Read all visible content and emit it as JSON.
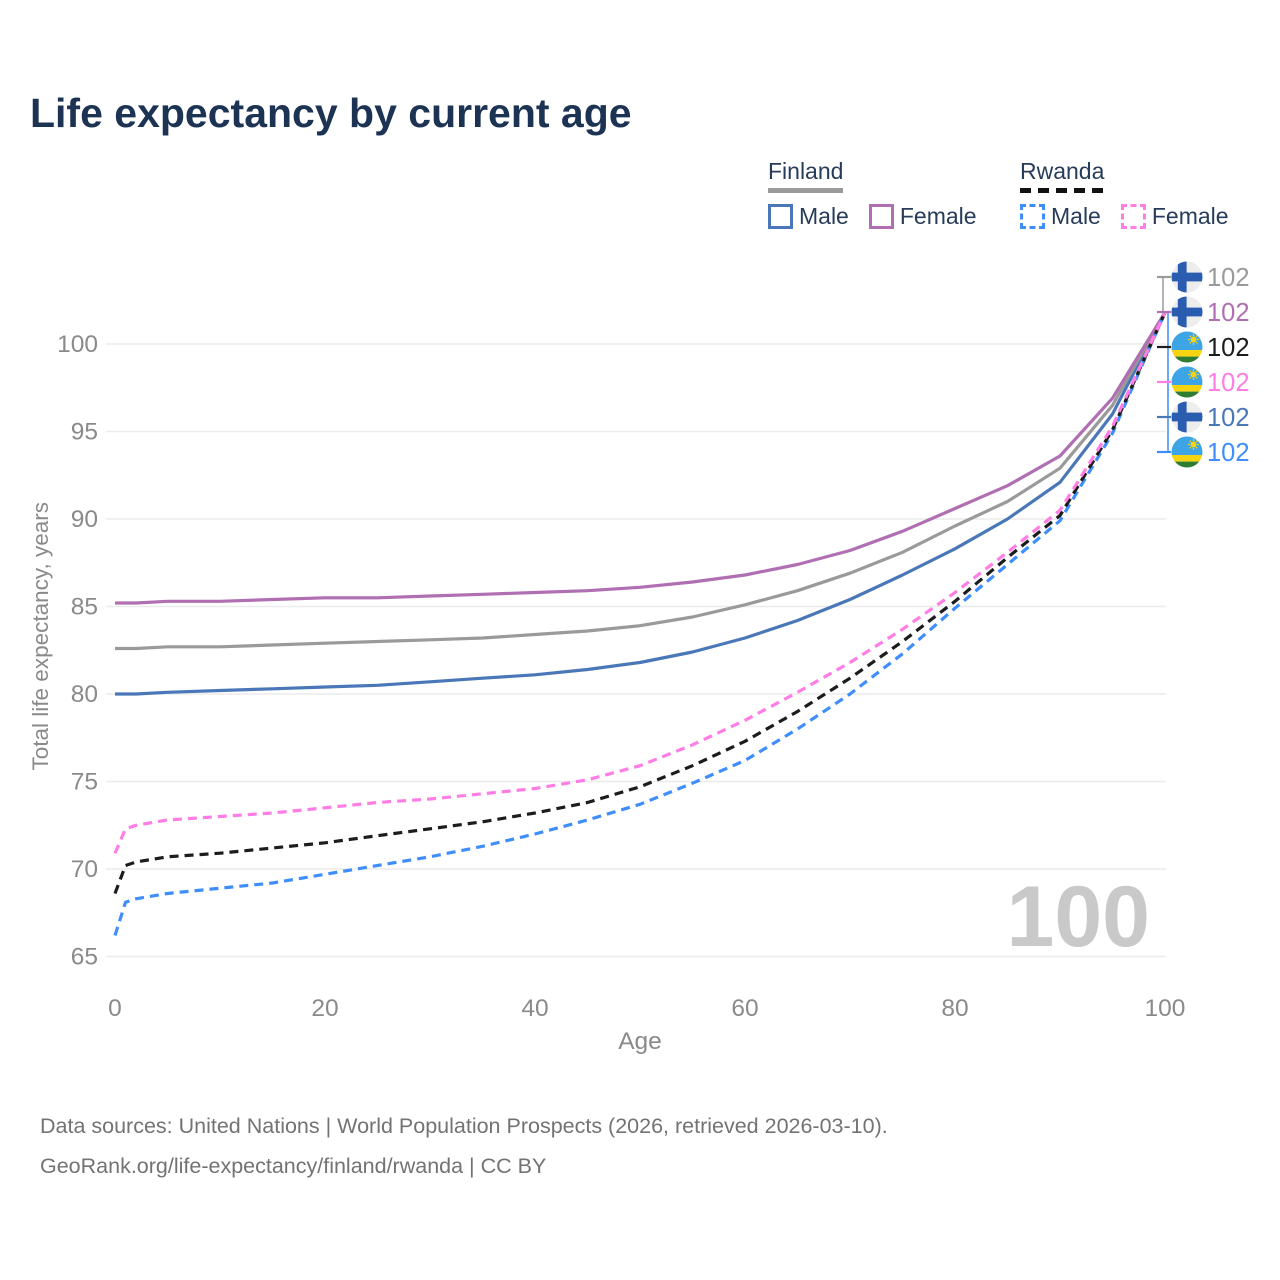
{
  "title": "Life expectancy by current age",
  "legend": {
    "groups": [
      {
        "label": "Finland",
        "line_style": "solid",
        "underline_color": "#9a9a9a",
        "items": [
          {
            "label": "Male",
            "color": "#4a77b8",
            "style": "solid"
          },
          {
            "label": "Female",
            "color": "#b06fb2",
            "style": "solid"
          }
        ]
      },
      {
        "label": "Rwanda",
        "line_style": "dashed",
        "underline_color": "#111111",
        "items": [
          {
            "label": "Male",
            "color": "#3f8efc",
            "style": "dashed"
          },
          {
            "label": "Female",
            "color": "#ff7de4",
            "style": "dashed"
          }
        ]
      }
    ]
  },
  "chart_data": {
    "type": "line",
    "title": "Life expectancy by current age",
    "xlabel": "Age",
    "ylabel": "Total life expectancy, years",
    "xlim": [
      0,
      100
    ],
    "ylim": [
      65,
      102
    ],
    "xticks": [
      0,
      20,
      40,
      60,
      80,
      100
    ],
    "yticks": [
      65,
      70,
      75,
      80,
      85,
      90,
      95,
      100
    ],
    "grid": "horizontal-only",
    "legend_position": "top-right",
    "watermark_age_counter": "100",
    "x": [
      0,
      1,
      2,
      5,
      10,
      15,
      20,
      25,
      30,
      35,
      40,
      45,
      50,
      55,
      60,
      65,
      70,
      75,
      80,
      85,
      90,
      95,
      100
    ],
    "series": [
      {
        "name": "Finland Male",
        "country": "Finland",
        "sex": "Male",
        "style": "solid",
        "color": "#4a77b8",
        "flag": "finland",
        "label_row": 4,
        "end_label": "102",
        "values": [
          80.0,
          80.0,
          80.0,
          80.1,
          80.2,
          80.3,
          80.4,
          80.5,
          80.7,
          80.9,
          81.1,
          81.4,
          81.8,
          82.4,
          83.2,
          84.2,
          85.4,
          86.8,
          88.3,
          90.0,
          92.1,
          96.0,
          101.8
        ]
      },
      {
        "name": "Finland Both sexes",
        "country": "Finland",
        "sex": "Both",
        "style": "solid",
        "color": "#9a9a9a",
        "flag": "finland",
        "label_row": 0,
        "end_label": "102",
        "values": [
          82.6,
          82.6,
          82.6,
          82.7,
          82.7,
          82.8,
          82.9,
          83.0,
          83.1,
          83.2,
          83.4,
          83.6,
          83.9,
          84.4,
          85.1,
          85.9,
          86.9,
          88.1,
          89.6,
          91.0,
          92.9,
          96.5,
          101.8
        ]
      },
      {
        "name": "Finland Female",
        "country": "Finland",
        "sex": "Female",
        "style": "solid",
        "color": "#b06fb2",
        "flag": "finland",
        "label_row": 1,
        "end_label": "102",
        "values": [
          85.2,
          85.2,
          85.2,
          85.3,
          85.3,
          85.4,
          85.5,
          85.5,
          85.6,
          85.7,
          85.8,
          85.9,
          86.1,
          86.4,
          86.8,
          87.4,
          88.2,
          89.3,
          90.6,
          91.9,
          93.6,
          96.9,
          101.8
        ]
      },
      {
        "name": "Rwanda Male",
        "country": "Rwanda",
        "sex": "Male",
        "style": "dashed",
        "color": "#3f8efc",
        "flag": "rwanda",
        "label_row": 5,
        "end_label": "102",
        "values": [
          66.2,
          68.1,
          68.3,
          68.6,
          68.9,
          69.2,
          69.7,
          70.2,
          70.7,
          71.3,
          72.0,
          72.8,
          73.7,
          74.9,
          76.2,
          78.0,
          80.0,
          82.3,
          84.9,
          87.4,
          89.9,
          94.9,
          101.8
        ]
      },
      {
        "name": "Rwanda Both sexes",
        "country": "Rwanda",
        "sex": "Both",
        "style": "dashed",
        "color": "#1c1c1c",
        "flag": "rwanda",
        "label_row": 2,
        "end_label": "102",
        "values": [
          68.6,
          70.2,
          70.4,
          70.7,
          70.9,
          71.2,
          71.5,
          71.9,
          72.3,
          72.7,
          73.2,
          73.8,
          74.7,
          75.9,
          77.3,
          79.0,
          80.9,
          83.0,
          85.3,
          87.8,
          90.2,
          95.1,
          101.8
        ]
      },
      {
        "name": "Rwanda Female",
        "country": "Rwanda",
        "sex": "Female",
        "style": "dashed",
        "color": "#ff7de4",
        "flag": "rwanda",
        "label_row": 3,
        "end_label": "102",
        "values": [
          70.9,
          72.3,
          72.5,
          72.8,
          73.0,
          73.2,
          73.5,
          73.8,
          74.0,
          74.3,
          74.6,
          75.1,
          75.9,
          77.1,
          78.5,
          80.1,
          81.8,
          83.7,
          85.8,
          88.1,
          90.5,
          95.3,
          101.8
        ]
      }
    ]
  },
  "footer": {
    "line1": "Data sources: United Nations | World Population Prospects (2026, retrieved 2026-03-10).",
    "line2": "GeoRank.org/life-expectancy/finland/rwanda | CC BY"
  }
}
